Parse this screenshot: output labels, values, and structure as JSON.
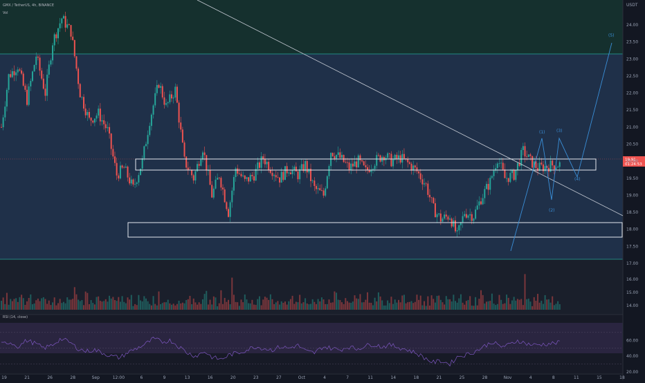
{
  "header": {
    "symbol_line": "GMX / TetherUS, 4h, BINANCE",
    "study_line": "Vol",
    "quote_unit": "USDT"
  },
  "rsi_header": "RSI (14, close)",
  "price_tag": {
    "value": "19.91",
    "sub": "01:24:53"
  },
  "chart_data": [
    {
      "type": "candlestick",
      "title": "GMX / TetherUS, 4h, BINANCE",
      "ylim": [
        17.0,
        24.5
      ],
      "y_ticks": [
        "24.00",
        "23.50",
        "23.00",
        "22.50",
        "22.00",
        "21.50",
        "21.00",
        "20.50",
        "20.00",
        "19.50",
        "19.00",
        "18.50",
        "18.00",
        "17.50",
        "17.00"
      ],
      "y_tick_values": [
        24.0,
        23.5,
        23.0,
        22.5,
        22.0,
        21.5,
        21.0,
        20.5,
        20.0,
        19.5,
        19.0,
        18.5,
        18.0,
        17.5,
        17.0
      ],
      "x_ticks": [
        "19",
        "21",
        "26",
        "28",
        "Sep",
        "12:00",
        "6",
        "9",
        "13",
        "16",
        "20",
        "23",
        "27",
        "Oct",
        "4",
        "7",
        "11",
        "14",
        "18",
        "21",
        "25",
        "28",
        "Nov",
        "4",
        "8",
        "11",
        "15",
        "18"
      ],
      "close_path": [
        [
          0,
          21.0
        ],
        [
          4,
          22.5
        ],
        [
          9,
          22.8
        ],
        [
          14,
          21.8
        ],
        [
          19,
          23.1
        ],
        [
          24,
          22.0
        ],
        [
          28,
          23.5
        ],
        [
          33,
          24.2
        ],
        [
          38,
          23.8
        ],
        [
          43,
          22.0
        ],
        [
          48,
          21.2
        ],
        [
          53,
          21.4
        ],
        [
          58,
          20.9
        ],
        [
          63,
          19.6
        ],
        [
          67,
          19.8
        ],
        [
          72,
          19.2
        ],
        [
          77,
          20.0
        ],
        [
          81,
          21.2
        ],
        [
          86,
          22.3
        ],
        [
          90,
          21.6
        ],
        [
          95,
          22.1
        ],
        [
          100,
          20.0
        ],
        [
          105,
          19.5
        ],
        [
          110,
          20.4
        ],
        [
          115,
          19.0
        ],
        [
          119,
          19.6
        ],
        [
          124,
          18.5
        ],
        [
          128,
          19.8
        ],
        [
          133,
          19.4
        ],
        [
          138,
          19.6
        ],
        [
          143,
          20.1
        ],
        [
          147,
          19.8
        ],
        [
          152,
          19.5
        ],
        [
          157,
          19.8
        ],
        [
          162,
          19.6
        ],
        [
          166,
          19.9
        ],
        [
          171,
          19.2
        ],
        [
          176,
          19.0
        ],
        [
          180,
          20.3
        ],
        [
          185,
          20.1
        ],
        [
          190,
          19.8
        ],
        [
          195,
          20.0
        ],
        [
          199,
          19.7
        ],
        [
          204,
          20.0
        ],
        [
          209,
          20.2
        ],
        [
          213,
          20.0
        ],
        [
          218,
          20.1
        ],
        [
          223,
          19.9
        ],
        [
          227,
          19.7
        ],
        [
          232,
          19.3
        ],
        [
          236,
          18.6
        ],
        [
          240,
          18.3
        ],
        [
          245,
          18.4
        ],
        [
          249,
          17.8
        ],
        [
          253,
          18.5
        ],
        [
          258,
          18.4
        ],
        [
          262,
          18.9
        ],
        [
          267,
          19.4
        ],
        [
          271,
          20.1
        ],
        [
          275,
          19.5
        ],
        [
          280,
          19.6
        ],
        [
          285,
          20.3
        ],
        [
          289,
          20.0
        ],
        [
          293,
          19.8
        ],
        [
          298,
          19.85
        ],
        [
          302,
          19.9
        ],
        [
          306,
          19.91
        ]
      ],
      "volume_ylim": [
        0,
        100
      ],
      "volume_ticks": [
        "16.00",
        "15.00",
        "14.00"
      ],
      "volume": [
        18,
        22,
        15,
        30,
        25,
        20,
        35,
        28,
        22,
        18,
        26,
        32,
        24,
        20,
        17,
        22,
        28,
        16,
        19,
        25,
        21,
        23,
        45,
        30,
        26,
        20,
        18,
        24,
        30,
        22,
        19,
        28,
        35,
        26,
        20,
        24,
        30,
        22,
        18,
        25,
        40,
        28,
        22,
        19,
        26,
        21,
        70,
        32,
        24,
        20,
        18,
        22,
        26,
        30,
        24,
        20,
        19,
        28,
        22,
        25,
        30,
        26,
        20,
        18,
        24,
        22,
        28,
        35,
        20,
        26,
        22,
        30,
        18,
        24,
        20,
        26,
        22,
        19,
        25,
        28
      ]
    },
    {
      "type": "line",
      "title": "RSI (14, close)",
      "ylim": [
        20,
        90
      ],
      "y_ticks": [
        "60.00",
        "40.00",
        "20.00"
      ],
      "y_tick_values": [
        60,
        40,
        20
      ],
      "values": [
        55,
        58,
        52,
        60,
        56,
        50,
        54,
        62,
        58,
        50,
        46,
        48,
        44,
        40,
        38,
        45,
        50,
        55,
        62,
        58,
        60,
        52,
        44,
        40,
        46,
        38,
        36,
        42,
        44,
        48,
        52,
        50,
        48,
        52,
        50,
        54,
        46,
        44,
        52,
        50,
        48,
        52,
        49,
        53,
        55,
        52,
        54,
        51,
        48,
        44,
        38,
        32,
        34,
        30,
        40,
        42,
        46,
        52,
        58,
        52,
        54,
        60,
        56,
        54,
        55,
        56,
        57
      ]
    }
  ],
  "annotations": {
    "wave_labels": [
      "(1)",
      "(2)",
      "(3)",
      "(4)",
      "(5)"
    ]
  },
  "colors": {
    "up": "#26a69a",
    "down": "#ef5350",
    "upper_zone": "#15302e",
    "main_zone": "#1f3049",
    "wave_line": "#3a8fd8",
    "trendline": "#c8cdd6",
    "box_border": "#e6e9ef",
    "rsi_line": "#7e57c2",
    "rsi_band": "#2a2540"
  }
}
